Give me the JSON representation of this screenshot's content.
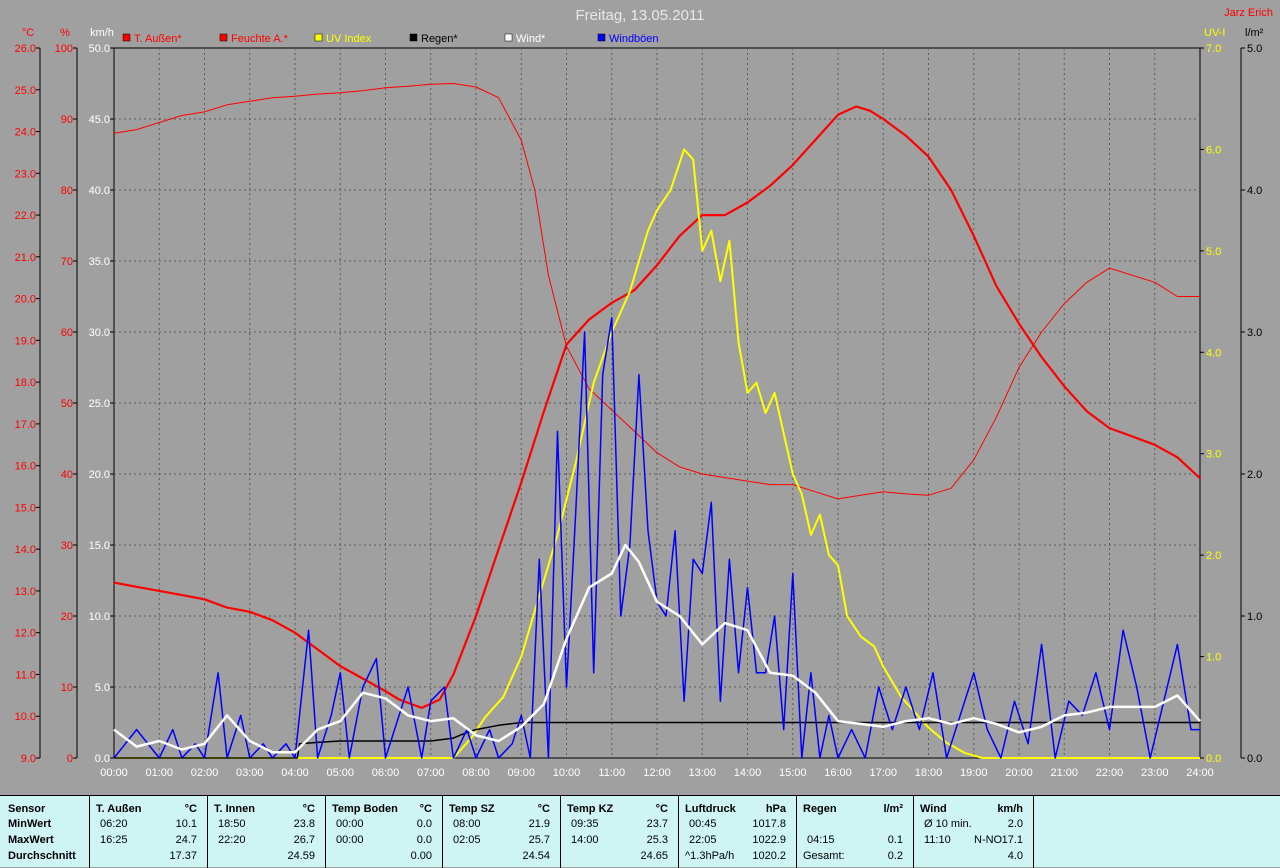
{
  "header": {
    "title": "Freitag, 13.05.2011",
    "author": "Jarz Erich"
  },
  "chart_data": {
    "type": "line",
    "title": "Freitag, 13.05.2011",
    "x_ticks": [
      "00:00",
      "01:00",
      "02:00",
      "03:00",
      "04:00",
      "05:00",
      "06:00",
      "07:00",
      "08:00",
      "09:00",
      "10:00",
      "11:00",
      "12:00",
      "13:00",
      "14:00",
      "15:00",
      "16:00",
      "17:00",
      "18:00",
      "19:00",
      "20:00",
      "21:00",
      "22:00",
      "23:00",
      "24:00"
    ],
    "xlim_hours": [
      0,
      24
    ],
    "grid": true,
    "legend_position": "top",
    "axes": {
      "temperature": {
        "unit": "°C",
        "min": 9.0,
        "max": 26.0,
        "step": 1.0,
        "color": "#ff0000",
        "ticks": [
          "9.0",
          "10.0",
          "11.0",
          "12.0",
          "13.0",
          "14.0",
          "15.0",
          "16.0",
          "17.0",
          "18.0",
          "19.0",
          "20.0",
          "21.0",
          "22.0",
          "23.0",
          "24.0",
          "25.0",
          "26.0"
        ]
      },
      "humidity": {
        "unit": "%",
        "min": 0,
        "max": 100,
        "step": 10,
        "color": "#ff0000",
        "ticks": [
          "0",
          "10",
          "20",
          "30",
          "40",
          "50",
          "60",
          "70",
          "80",
          "90",
          "100"
        ]
      },
      "wind": {
        "unit": "km/h",
        "min": 0,
        "max": 50,
        "step": 5,
        "color": "#ffffff",
        "ticks": [
          "0.0",
          "5.0",
          "10.0",
          "15.0",
          "20.0",
          "25.0",
          "30.0",
          "35.0",
          "40.0",
          "45.0",
          "50.0"
        ]
      },
      "uv": {
        "unit": "UV-I",
        "min": 0,
        "max": 7,
        "step": 1,
        "color": "#ffff00",
        "ticks": [
          "0.0",
          "1.0",
          "2.0",
          "3.0",
          "4.0",
          "5.0",
          "6.0",
          "7.0"
        ]
      },
      "rain": {
        "unit": "l/m²",
        "min": 0,
        "max": 5,
        "step": 1,
        "color": "#000000",
        "ticks": [
          "0.0",
          "1.0",
          "2.0",
          "3.0",
          "4.0",
          "5.0"
        ]
      }
    },
    "series": [
      {
        "name": "T. Außen*",
        "axis": "temperature",
        "color": "#ff0000",
        "width": 2.2,
        "x": [
          0,
          0.5,
          1,
          1.5,
          2,
          2.5,
          3,
          3.5,
          4,
          4.5,
          5,
          5.5,
          6,
          6.3,
          6.8,
          7.2,
          7.5,
          8,
          8.5,
          9,
          9.5,
          10,
          10.5,
          11,
          11.5,
          12,
          12.5,
          13,
          13.5,
          14,
          14.5,
          15,
          15.5,
          16,
          16.4,
          16.7,
          17,
          17.5,
          18,
          18.5,
          19,
          19.5,
          20,
          20.5,
          21,
          21.5,
          22,
          22.5,
          23,
          23.5,
          24
        ],
        "y": [
          13.2,
          13.1,
          13.0,
          12.9,
          12.8,
          12.6,
          12.5,
          12.3,
          12.0,
          11.6,
          11.2,
          10.9,
          10.6,
          10.4,
          10.2,
          10.4,
          11.0,
          12.4,
          14.0,
          15.6,
          17.3,
          18.9,
          19.5,
          19.9,
          20.2,
          20.8,
          21.5,
          22.0,
          22.0,
          22.3,
          22.7,
          23.2,
          23.8,
          24.4,
          24.6,
          24.5,
          24.3,
          23.9,
          23.4,
          22.6,
          21.5,
          20.3,
          19.4,
          18.6,
          17.9,
          17.3,
          16.9,
          16.7,
          16.5,
          16.2,
          15.7
        ]
      },
      {
        "name": "Feuchte A.*",
        "axis": "humidity",
        "color": "#ff0000",
        "width": 1.0,
        "x": [
          0,
          0.5,
          1,
          1.5,
          2,
          2.5,
          3,
          3.5,
          4,
          4.5,
          5,
          5.5,
          6,
          6.5,
          7,
          7.5,
          8,
          8.5,
          9,
          9.3,
          9.6,
          10,
          10.5,
          11,
          11.5,
          12,
          12.5,
          13,
          13.5,
          14,
          14.5,
          15,
          15.5,
          16,
          16.5,
          17,
          17.5,
          18,
          18.5,
          19,
          19.5,
          20,
          20.5,
          21,
          21.5,
          22,
          22.5,
          23,
          23.5,
          24
        ],
        "y": [
          88,
          88.5,
          89.5,
          90.5,
          91,
          92,
          92.5,
          93,
          93.2,
          93.5,
          93.7,
          94,
          94.4,
          94.6,
          94.9,
          95,
          94.5,
          93,
          87,
          80,
          68,
          58,
          52,
          49,
          46,
          43,
          41,
          40,
          39.5,
          39,
          38.5,
          38.5,
          37.5,
          36.5,
          37,
          37.5,
          37.2,
          37,
          38,
          42,
          48,
          55,
          60,
          64,
          67,
          69,
          68,
          67,
          65,
          65
        ]
      },
      {
        "name": "UV Index",
        "axis": "uv",
        "color": "#ffff00",
        "width": 2.0,
        "x": [
          0,
          7.5,
          7.9,
          8.2,
          8.6,
          9.0,
          9.4,
          9.8,
          10.2,
          10.6,
          11.0,
          11.4,
          11.8,
          12.0,
          12.3,
          12.6,
          12.8,
          13.0,
          13.2,
          13.4,
          13.6,
          13.8,
          14.0,
          14.2,
          14.4,
          14.6,
          14.8,
          15.0,
          15.2,
          15.4,
          15.6,
          15.8,
          16.0,
          16.2,
          16.5,
          16.8,
          17.0,
          17.4,
          17.8,
          18.0,
          18.4,
          18.8,
          19.2,
          24
        ],
        "y": [
          0,
          0,
          0.2,
          0.4,
          0.6,
          1.0,
          1.6,
          2.2,
          2.9,
          3.7,
          4.2,
          4.6,
          5.2,
          5.4,
          5.6,
          6.0,
          5.9,
          5.0,
          5.2,
          4.7,
          5.1,
          4.1,
          3.6,
          3.7,
          3.4,
          3.6,
          3.2,
          2.8,
          2.6,
          2.2,
          2.4,
          2.0,
          1.9,
          1.4,
          1.2,
          1.1,
          0.9,
          0.6,
          0.4,
          0.3,
          0.15,
          0.05,
          0,
          0
        ]
      },
      {
        "name": "Regen*",
        "axis": "rain",
        "color": "#000000",
        "width": 1.5,
        "x": [
          0,
          4.05,
          4.1,
          4.5,
          5,
          6,
          7,
          7.5,
          7.8,
          8,
          8.5,
          9,
          24
        ],
        "y": [
          0,
          0,
          0.1,
          0.11,
          0.12,
          0.12,
          0.12,
          0.14,
          0.18,
          0.2,
          0.23,
          0.25,
          0.25
        ]
      },
      {
        "name": "Wind*",
        "axis": "wind",
        "color": "#ffffff",
        "width": 2.5,
        "x": [
          0,
          0.5,
          1,
          1.5,
          2,
          2.5,
          3,
          3.5,
          4,
          4.5,
          5,
          5.5,
          6,
          6.5,
          7,
          7.5,
          8,
          8.5,
          9,
          9.5,
          10,
          10.5,
          11,
          11.3,
          11.6,
          12,
          12.5,
          13,
          13.5,
          14,
          14.5,
          15,
          15.5,
          16,
          16.5,
          17,
          17.5,
          18,
          18.5,
          19,
          19.5,
          20,
          20.5,
          21,
          21.5,
          22,
          22.5,
          23,
          23.5,
          24
        ],
        "y": [
          2.0,
          0.8,
          1.2,
          0.6,
          1.0,
          3.0,
          1.2,
          0.4,
          0.4,
          2.0,
          2.6,
          4.6,
          4.2,
          3.0,
          2.6,
          2.8,
          1.6,
          1.2,
          2.2,
          3.8,
          8.4,
          12.0,
          13.0,
          15.0,
          13.8,
          11.0,
          10.0,
          8.0,
          9.5,
          9.0,
          6.0,
          5.8,
          4.6,
          2.6,
          2.4,
          2.2,
          2.6,
          2.8,
          2.4,
          2.8,
          2.4,
          1.8,
          2.2,
          3.0,
          3.2,
          3.6,
          3.6,
          3.6,
          4.4,
          2.6
        ]
      },
      {
        "name": "Windböen",
        "axis": "wind",
        "color": "#0000ff",
        "width": 1.5,
        "x": [
          0,
          0.5,
          1,
          1.3,
          1.5,
          1.8,
          2,
          2.3,
          2.5,
          2.8,
          3,
          3.3,
          3.5,
          3.8,
          4,
          4.3,
          4.5,
          4.8,
          5,
          5.2,
          5.5,
          5.8,
          6,
          6.3,
          6.5,
          6.8,
          7,
          7.3,
          7.5,
          7.8,
          8,
          8.3,
          8.5,
          8.8,
          9,
          9.2,
          9.4,
          9.6,
          9.8,
          10,
          10.2,
          10.4,
          10.6,
          10.8,
          11,
          11.2,
          11.4,
          11.6,
          11.8,
          12,
          12.2,
          12.4,
          12.6,
          12.8,
          13,
          13.2,
          13.4,
          13.6,
          13.8,
          14,
          14.2,
          14.4,
          14.6,
          14.8,
          15,
          15.2,
          15.4,
          15.6,
          15.8,
          16,
          16.3,
          16.6,
          16.9,
          17.2,
          17.5,
          17.8,
          18.1,
          18.4,
          18.7,
          19,
          19.3,
          19.6,
          19.9,
          20.2,
          20.5,
          20.8,
          21.1,
          21.4,
          21.7,
          22,
          22.3,
          22.6,
          22.9,
          23.2,
          23.5,
          23.8,
          24
        ],
        "y": [
          0,
          2,
          0,
          2,
          0,
          1,
          0,
          6,
          0,
          3,
          0,
          1,
          0,
          1,
          0,
          9,
          0,
          3,
          6,
          0,
          5,
          7,
          0,
          3,
          5,
          0,
          4,
          5,
          0,
          2,
          0,
          2,
          0,
          1,
          3,
          0,
          14,
          0,
          23,
          5,
          17,
          30,
          6,
          27,
          31,
          10,
          15,
          27,
          16,
          11,
          10,
          16,
          4,
          14,
          13,
          18,
          4,
          14,
          6,
          12,
          6,
          6,
          10,
          2,
          13,
          0,
          6,
          0,
          3,
          0,
          2,
          0,
          5,
          2,
          5,
          2,
          6,
          0,
          3,
          6,
          2,
          0,
          4,
          1,
          8,
          0,
          4,
          3,
          6,
          2,
          9,
          5,
          0,
          4,
          8,
          2,
          2
        ]
      }
    ]
  },
  "summary_table": {
    "row_labels": {
      "header": "Sensor",
      "min": "MinWert",
      "max": "MaxWert",
      "avg": "Durchschnitt"
    },
    "sections": [
      {
        "name": "T. Außen",
        "unit": "°C",
        "min_time": "06:20",
        "min_val": "10.1",
        "max_time": "16:25",
        "max_val": "24.7",
        "avg": "17.37"
      },
      {
        "name": "T. Innen",
        "unit": "°C",
        "min_time": "18:50",
        "min_val": "23.8",
        "max_time": "22:20",
        "max_val": "26.7",
        "avg": "24.59"
      },
      {
        "name": "Temp Boden",
        "unit": "°C",
        "min_time": "00:00",
        "min_val": "0.0",
        "max_time": "00:00",
        "max_val": "0.0",
        "avg": "0.00"
      },
      {
        "name": "Temp SZ",
        "unit": "°C",
        "min_time": "08:00",
        "min_val": "21.9",
        "max_time": "02:05",
        "max_val": "25.7",
        "avg": "24.54"
      },
      {
        "name": "Temp KZ",
        "unit": "°C",
        "min_time": "09:35",
        "min_val": "23.7",
        "max_time": "14:00",
        "max_val": "25.3",
        "avg": "24.65"
      },
      {
        "name": "Luftdruck",
        "unit": "hPa",
        "min_time": "00:45",
        "min_val": "1017.8",
        "max_time": "22:05",
        "max_val": "1022.9",
        "avg_time": "^1.3hPa/h",
        "avg": "1020.2"
      },
      {
        "name": "Regen",
        "unit": "l/m²",
        "max_time": "04:15",
        "max_val": "0.1",
        "avg_time": "Gesamt:",
        "avg": "0.2"
      },
      {
        "name": "Wind",
        "unit": "km/h",
        "min_time": "Ø 10 min.",
        "min_val": "2.0",
        "max_time": "11:10",
        "max_mid": "N-NO",
        "max_val": "17.1",
        "avg": "4.0"
      }
    ]
  }
}
